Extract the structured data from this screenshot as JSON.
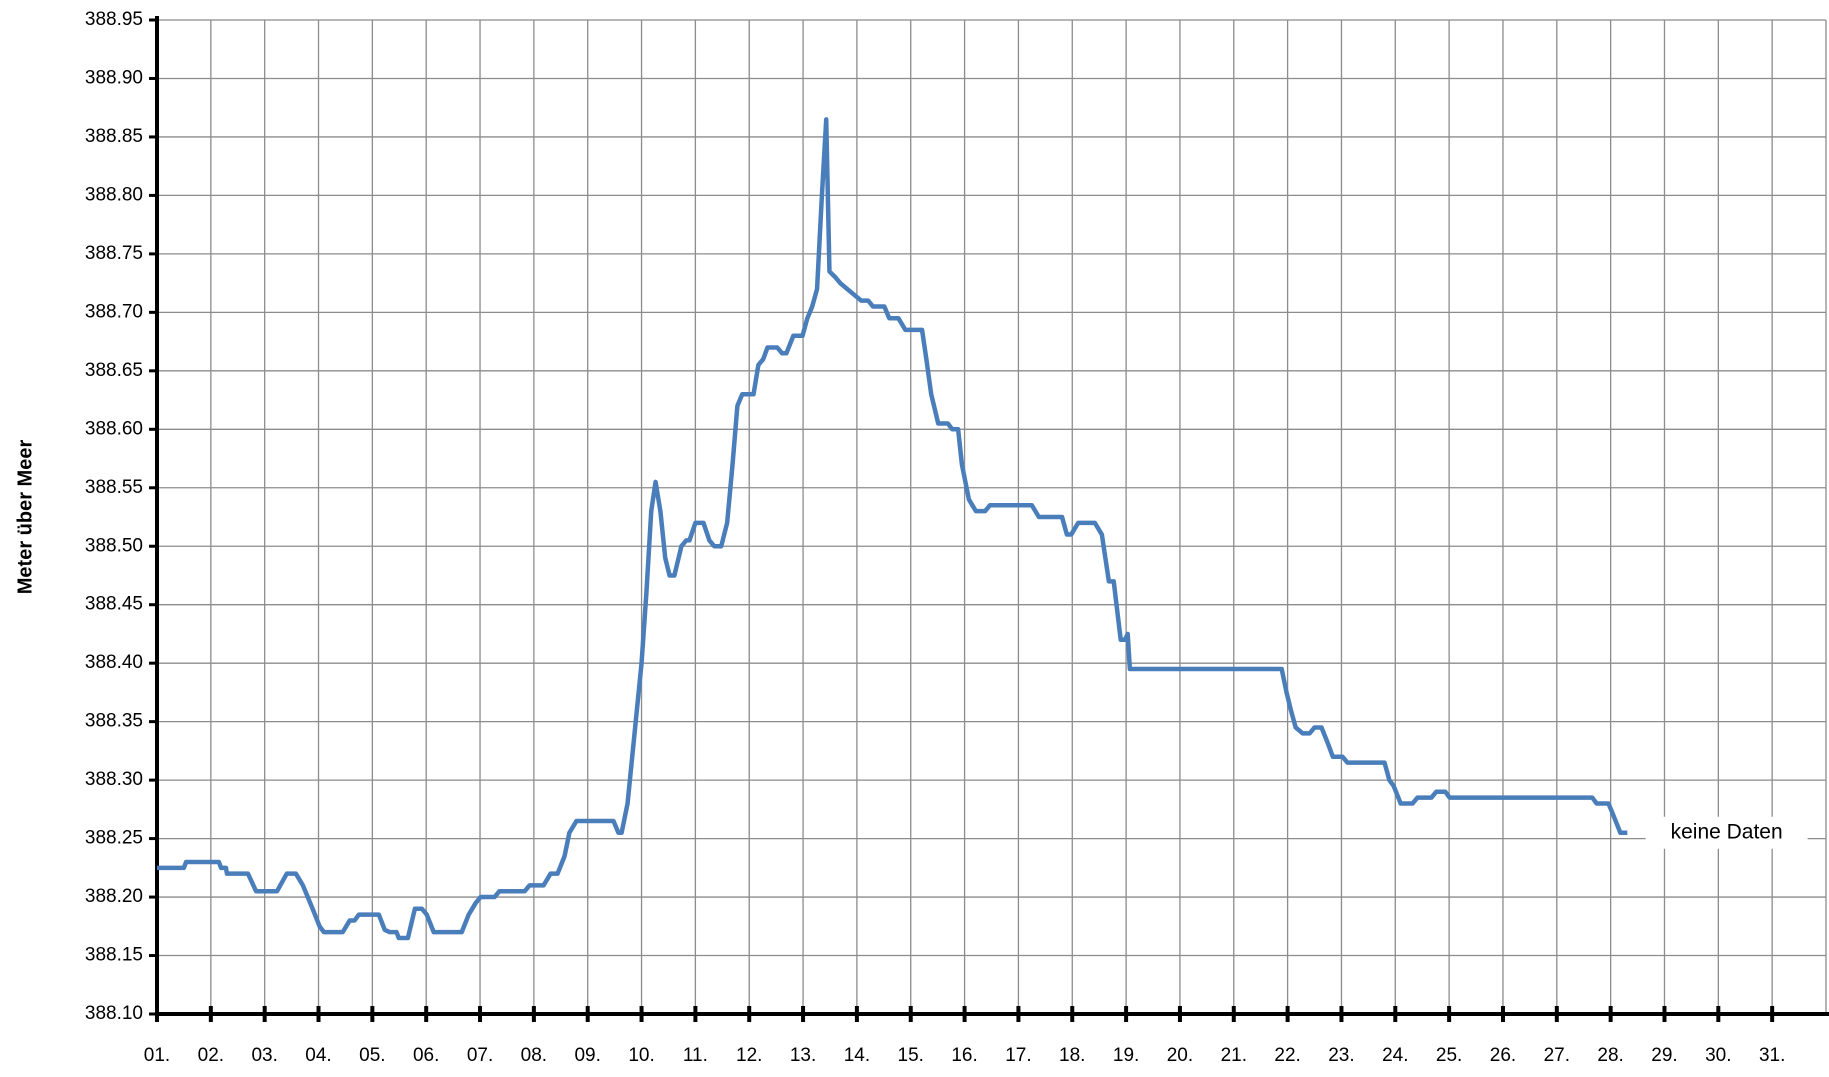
{
  "chart_data": {
    "type": "line",
    "y_label": "Meter über Meer",
    "annotation": "keine Daten",
    "grid": true,
    "xlim": [
      1,
      32
    ],
    "ylim": [
      388.1,
      388.95
    ],
    "yticks": [
      {
        "value": 388.1,
        "label": "388.10"
      },
      388.15,
      {
        "value": 388.2,
        "label": "388.20"
      },
      388.25,
      {
        "value": 388.3,
        "label": "388.30"
      },
      388.35,
      {
        "value": 388.4,
        "label": "388.40"
      },
      388.45,
      {
        "value": 388.5,
        "label": "388.50"
      },
      388.55,
      {
        "value": 388.6,
        "label": "388.60"
      },
      388.65,
      {
        "value": 388.7,
        "label": "388.70"
      },
      388.75,
      {
        "value": 388.8,
        "label": "388.80"
      },
      388.85,
      {
        "value": 388.9,
        "label": "388.90"
      },
      388.95
    ],
    "xticks": [
      {
        "value": 1,
        "label": "01."
      },
      {
        "value": 2,
        "label": "02."
      },
      {
        "value": 3,
        "label": "03."
      },
      {
        "value": 4,
        "label": "04."
      },
      {
        "value": 5,
        "label": "05."
      },
      {
        "value": 6,
        "label": "06."
      },
      {
        "value": 7,
        "label": "07."
      },
      {
        "value": 8,
        "label": "08."
      },
      {
        "value": 9,
        "label": "09."
      },
      {
        "value": 10,
        "label": "10."
      },
      {
        "value": 11,
        "label": "11."
      },
      {
        "value": 12,
        "label": "12."
      },
      {
        "value": 13,
        "label": "13."
      },
      {
        "value": 14,
        "label": "14."
      },
      {
        "value": 15,
        "label": "15."
      },
      {
        "value": 16,
        "label": "16."
      },
      {
        "value": 17,
        "label": "17."
      },
      {
        "value": 18,
        "label": "18."
      },
      {
        "value": 19,
        "label": "19."
      },
      {
        "value": 20,
        "label": "20."
      },
      {
        "value": 21,
        "label": "21."
      },
      {
        "value": 22,
        "label": "22."
      },
      {
        "value": 23,
        "label": "23."
      },
      {
        "value": 24,
        "label": "24."
      },
      {
        "value": 25,
        "label": "25."
      },
      {
        "value": 26,
        "label": "26."
      },
      {
        "value": 27,
        "label": "27."
      },
      {
        "value": 28,
        "label": "28."
      },
      {
        "value": 29,
        "label": "29."
      },
      {
        "value": 30,
        "label": "30."
      },
      {
        "value": 31,
        "label": "31."
      }
    ],
    "series": [
      {
        "color": "#4a7ebb",
        "x": [
          1.0,
          1.5,
          1.54,
          2.15,
          2.19,
          2.28,
          2.3,
          2.69,
          2.84,
          3.23,
          3.41,
          3.58,
          3.71,
          3.89,
          4.02,
          4.1,
          4.45,
          4.58,
          4.67,
          4.75,
          5.12,
          5.23,
          5.32,
          5.45,
          5.49,
          5.66,
          5.79,
          5.92,
          6.01,
          6.14,
          6.66,
          6.79,
          6.92,
          7.01,
          7.27,
          7.36,
          7.83,
          7.92,
          8.18,
          8.31,
          8.44,
          8.57,
          8.66,
          8.79,
          9.48,
          9.57,
          9.63,
          9.74,
          9.87,
          10.0,
          10.09,
          10.18,
          10.26,
          10.35,
          10.44,
          10.52,
          10.61,
          10.74,
          10.83,
          10.89,
          11.0,
          11.15,
          11.26,
          11.35,
          11.48,
          11.59,
          11.69,
          11.78,
          11.87,
          12.08,
          12.17,
          12.26,
          12.34,
          12.52,
          12.61,
          12.69,
          12.82,
          12.99,
          13.08,
          13.17,
          13.26,
          13.35,
          13.43,
          13.49,
          13.6,
          13.69,
          13.82,
          13.95,
          14.08,
          14.21,
          14.3,
          14.51,
          14.6,
          14.77,
          14.9,
          15.21,
          15.29,
          15.38,
          15.51,
          15.69,
          15.77,
          15.88,
          15.95,
          16.08,
          16.21,
          16.38,
          16.47,
          17.25,
          17.38,
          17.81,
          17.9,
          17.98,
          18.11,
          18.42,
          18.55,
          18.68,
          18.77,
          18.9,
          18.98,
          19.03,
          19.07,
          21.89,
          21.98,
          22.06,
          22.15,
          22.28,
          22.41,
          22.5,
          22.63,
          22.76,
          22.84,
          23.02,
          23.11,
          23.8,
          23.89,
          23.97,
          24.1,
          24.32,
          24.41,
          24.67,
          24.76,
          24.93,
          25.01,
          27.66,
          27.74,
          27.96,
          28.05,
          28.18,
          28.31
        ],
        "values": [
          388.225,
          388.225,
          388.23,
          388.23,
          388.225,
          388.225,
          388.22,
          388.22,
          388.205,
          388.205,
          388.22,
          388.22,
          388.21,
          388.19,
          388.175,
          388.17,
          388.17,
          388.18,
          388.18,
          388.185,
          388.185,
          388.172,
          388.17,
          388.17,
          388.165,
          388.165,
          388.19,
          388.19,
          388.185,
          388.17,
          388.17,
          388.185,
          388.195,
          388.2,
          388.2,
          388.205,
          388.205,
          388.21,
          388.21,
          388.22,
          388.22,
          388.235,
          388.255,
          388.265,
          388.265,
          388.255,
          388.255,
          388.28,
          388.34,
          388.4,
          388.46,
          388.53,
          388.555,
          388.53,
          388.49,
          388.475,
          388.475,
          388.5,
          388.505,
          388.505,
          388.52,
          388.52,
          388.505,
          388.5,
          388.5,
          388.52,
          388.57,
          388.62,
          388.63,
          388.63,
          388.655,
          388.66,
          388.67,
          388.67,
          388.665,
          388.665,
          388.68,
          388.68,
          388.695,
          388.705,
          388.72,
          388.8,
          388.865,
          388.735,
          388.73,
          388.725,
          388.72,
          388.715,
          388.71,
          388.71,
          388.705,
          388.705,
          388.695,
          388.695,
          388.685,
          388.685,
          388.66,
          388.63,
          388.605,
          388.605,
          388.6,
          388.6,
          388.57,
          388.54,
          388.53,
          388.53,
          388.535,
          388.535,
          388.525,
          388.525,
          388.51,
          388.51,
          388.52,
          388.52,
          388.51,
          388.47,
          388.47,
          388.42,
          388.42,
          388.425,
          388.395,
          388.395,
          388.375,
          388.36,
          388.345,
          388.34,
          388.34,
          388.345,
          388.345,
          388.33,
          388.32,
          388.32,
          388.315,
          388.315,
          388.3,
          388.295,
          388.28,
          388.28,
          388.285,
          388.285,
          388.29,
          388.29,
          388.285,
          388.285,
          388.28,
          388.28,
          388.27,
          388.255,
          388.255
        ]
      }
    ]
  }
}
